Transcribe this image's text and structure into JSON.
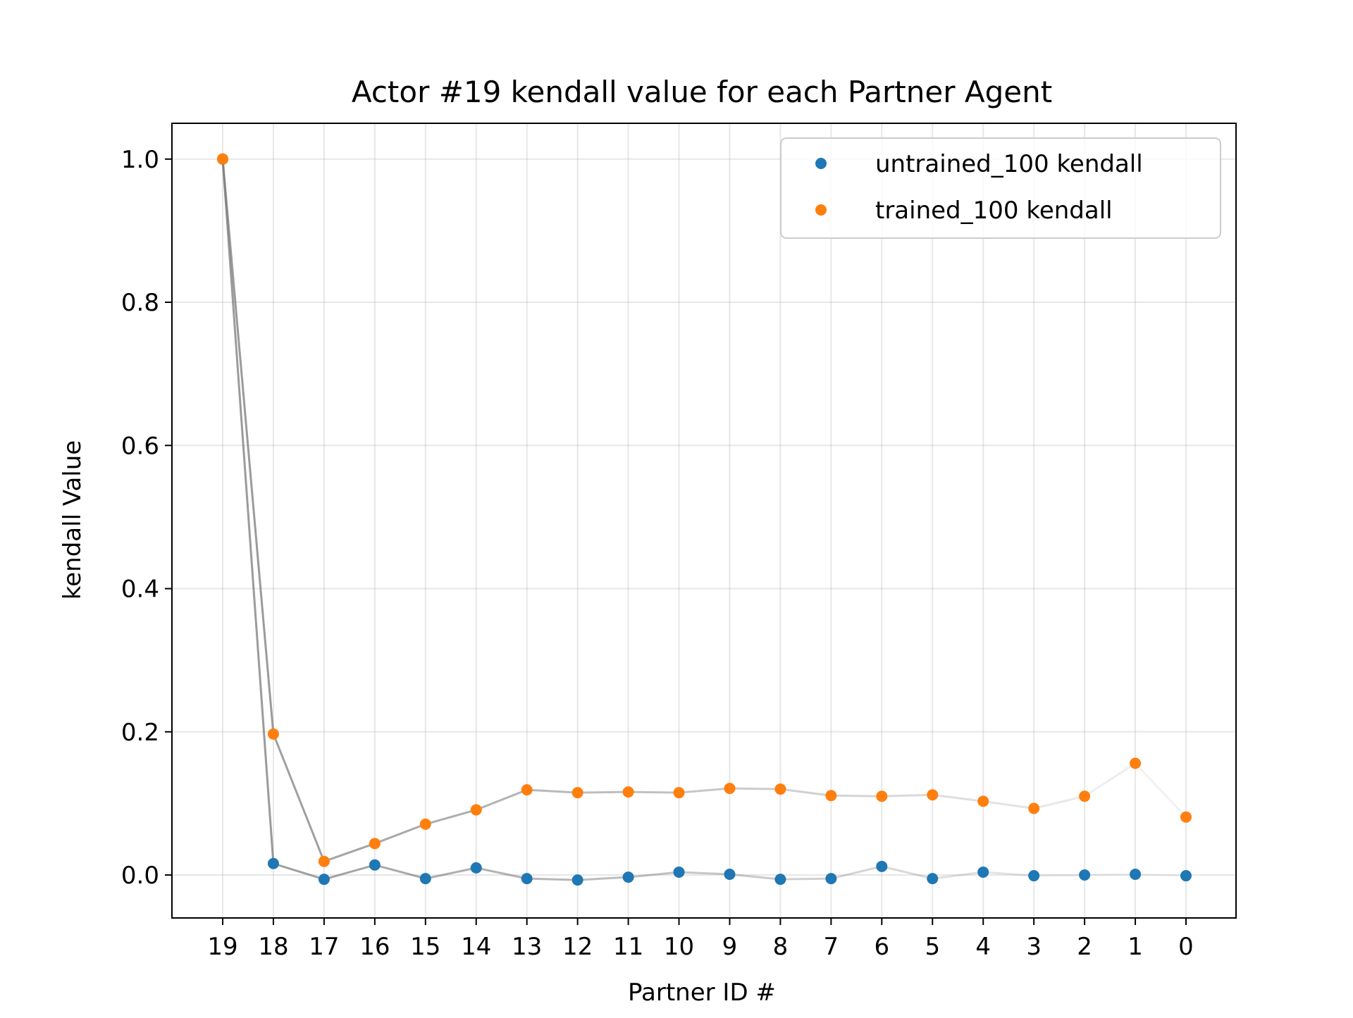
{
  "chart_data": {
    "type": "scatter",
    "title": "Actor #19 kendall value for each Partner Agent",
    "xlabel": "Partner ID #",
    "ylabel": "kendall Value",
    "categories": [
      "19",
      "18",
      "17",
      "16",
      "15",
      "14",
      "13",
      "12",
      "11",
      "10",
      "9",
      "8",
      "7",
      "6",
      "5",
      "4",
      "3",
      "2",
      "1",
      "0"
    ],
    "ylim": [
      -0.06,
      1.05
    ],
    "yticks": [
      "0.0",
      "0.2",
      "0.4",
      "0.6",
      "0.8",
      "1.0"
    ],
    "grid": true,
    "legend_position": "top-right",
    "connecting_lines": true,
    "series": [
      {
        "name": "untrained_100 kendall",
        "color": "#1f77b4",
        "values": [
          1.0,
          0.016,
          -0.006,
          0.014,
          -0.005,
          0.01,
          -0.005,
          -0.007,
          -0.003,
          0.004,
          0.001,
          -0.006,
          -0.005,
          0.012,
          -0.005,
          0.004,
          -0.001,
          0.0,
          0.001,
          -0.001
        ]
      },
      {
        "name": "trained_100 kendall",
        "color": "#ff7f0e",
        "values": [
          1.0,
          0.197,
          0.019,
          0.044,
          0.071,
          0.091,
          0.119,
          0.115,
          0.116,
          0.115,
          0.121,
          0.12,
          0.111,
          0.11,
          0.112,
          0.103,
          0.093,
          0.11,
          0.156,
          0.081
        ]
      }
    ]
  }
}
